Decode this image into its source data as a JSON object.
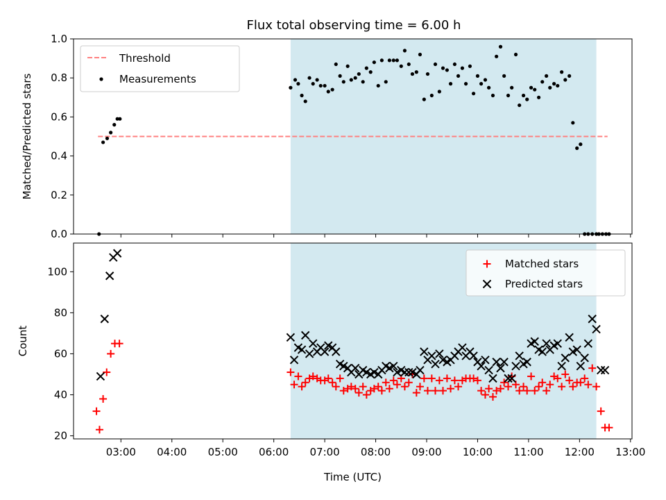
{
  "chart_data": {
    "title": "Flux total observing time = 6.00 h",
    "xlabel": "Time (UTC)",
    "x_tick_labels": [
      "03:00",
      "04:00",
      "05:00",
      "06:00",
      "07:00",
      "08:00",
      "09:00",
      "10:00",
      "11:00",
      "12:00",
      "13:00"
    ],
    "x_tick_hours": [
      3,
      4,
      5,
      6,
      7,
      8,
      9,
      10,
      11,
      12,
      13
    ],
    "xlim_hours": [
      2.07,
      13.03
    ],
    "shaded_region_hours": [
      6.33,
      12.33
    ],
    "colors": {
      "shade": "#d3e9f0",
      "threshold": "#ff7f7f",
      "matched": "#ff0000",
      "predicted": "#000000",
      "measurement": "#000000"
    },
    "panels": [
      {
        "type": "scatter",
        "ylabel": "Matched/Predicted stars",
        "ylim": [
          0,
          1.0
        ],
        "y_ticks": [
          0.0,
          0.2,
          0.4,
          0.6,
          0.8,
          1.0
        ],
        "y_tick_labels": [
          "0.0",
          "0.2",
          "0.4",
          "0.6",
          "0.8",
          "1.0"
        ],
        "legend": {
          "position": "upper-left",
          "threshold_label": "Threshold",
          "measurements_label": "Measurements"
        },
        "threshold": {
          "y": 0.5,
          "x_start": 2.55,
          "x_end": 12.55
        },
        "measurements": {
          "x": [
            2.57,
            2.65,
            2.73,
            2.8,
            2.87,
            2.93,
            2.98,
            6.33,
            6.42,
            6.48,
            6.55,
            6.62,
            6.7,
            6.77,
            6.85,
            6.92,
            7.0,
            7.07,
            7.15,
            7.22,
            7.3,
            7.37,
            7.45,
            7.52,
            7.6,
            7.67,
            7.75,
            7.82,
            7.9,
            7.97,
            8.05,
            8.12,
            8.2,
            8.27,
            8.35,
            8.42,
            8.5,
            8.57,
            8.65,
            8.72,
            8.8,
            8.87,
            8.95,
            9.02,
            9.1,
            9.17,
            9.25,
            9.32,
            9.4,
            9.47,
            9.55,
            9.62,
            9.7,
            9.77,
            9.85,
            9.92,
            10.0,
            10.07,
            10.15,
            10.22,
            10.3,
            10.37,
            10.45,
            10.52,
            10.6,
            10.67,
            10.75,
            10.82,
            10.9,
            10.97,
            11.05,
            11.12,
            11.2,
            11.27,
            11.35,
            11.42,
            11.5,
            11.57,
            11.65,
            11.72,
            11.8,
            11.87,
            11.95,
            12.02,
            12.1,
            12.17,
            12.25,
            12.33,
            12.38,
            12.45,
            12.52,
            12.58
          ],
          "y": [
            0.0,
            0.47,
            0.49,
            0.52,
            0.56,
            0.59,
            0.59,
            0.75,
            0.79,
            0.77,
            0.71,
            0.68,
            0.8,
            0.77,
            0.79,
            0.76,
            0.76,
            0.73,
            0.74,
            0.87,
            0.81,
            0.78,
            0.86,
            0.79,
            0.8,
            0.82,
            0.78,
            0.85,
            0.83,
            0.88,
            0.76,
            0.89,
            0.78,
            0.89,
            0.89,
            0.89,
            0.86,
            0.94,
            0.87,
            0.82,
            0.83,
            0.92,
            0.69,
            0.82,
            0.71,
            0.87,
            0.73,
            0.85,
            0.84,
            0.77,
            0.87,
            0.81,
            0.85,
            0.77,
            0.86,
            0.72,
            0.81,
            0.77,
            0.79,
            0.75,
            0.71,
            0.91,
            0.96,
            0.81,
            0.71,
            0.75,
            0.92,
            0.66,
            0.71,
            0.69,
            0.75,
            0.74,
            0.7,
            0.78,
            0.81,
            0.75,
            0.77,
            0.76,
            0.83,
            0.79,
            0.81,
            0.57,
            0.44,
            0.46,
            0.0,
            0.0,
            0.0,
            0.0,
            0.0,
            0.0,
            0.0,
            0.0
          ]
        }
      },
      {
        "type": "scatter",
        "ylabel": "Count",
        "ylim": [
          18.5,
          114
        ],
        "y_ticks": [
          20,
          40,
          60,
          80,
          100
        ],
        "y_tick_labels": [
          "20",
          "40",
          "60",
          "80",
          "100"
        ],
        "legend": {
          "position": "upper-right",
          "matched_label": "Matched stars",
          "predicted_label": "Predicted stars"
        },
        "matched": {
          "x": [
            2.52,
            2.58,
            2.65,
            2.72,
            2.8,
            2.88,
            2.97,
            6.33,
            6.4,
            6.48,
            6.55,
            6.62,
            6.7,
            6.77,
            6.85,
            6.92,
            7.0,
            7.07,
            7.15,
            7.22,
            7.3,
            7.37,
            7.45,
            7.52,
            7.6,
            7.67,
            7.75,
            7.82,
            7.9,
            7.97,
            8.05,
            8.12,
            8.2,
            8.27,
            8.35,
            8.42,
            8.5,
            8.57,
            8.65,
            8.72,
            8.8,
            8.87,
            8.95,
            9.02,
            9.1,
            9.17,
            9.25,
            9.32,
            9.4,
            9.47,
            9.55,
            9.62,
            9.7,
            9.77,
            9.85,
            9.92,
            10.0,
            10.07,
            10.15,
            10.22,
            10.3,
            10.37,
            10.45,
            10.52,
            10.6,
            10.67,
            10.75,
            10.82,
            10.9,
            10.97,
            11.05,
            11.12,
            11.2,
            11.27,
            11.35,
            11.42,
            11.5,
            11.57,
            11.65,
            11.72,
            11.8,
            11.87,
            11.95,
            12.02,
            12.1,
            12.17,
            12.25,
            12.33,
            12.42,
            12.5,
            12.58
          ],
          "y": [
            32,
            23,
            38,
            51,
            60,
            65,
            65,
            51,
            45,
            49,
            44,
            46,
            48,
            49,
            48,
            47,
            47,
            48,
            46,
            44,
            48,
            42,
            43,
            44,
            43,
            41,
            44,
            40,
            42,
            43,
            44,
            42,
            46,
            43,
            47,
            45,
            48,
            44,
            46,
            50,
            41,
            44,
            48,
            42,
            48,
            42,
            47,
            42,
            48,
            43,
            47,
            44,
            47,
            48,
            48,
            48,
            47,
            42,
            40,
            43,
            39,
            42,
            43,
            46,
            44,
            49,
            45,
            42,
            44,
            42,
            49,
            42,
            44,
            46,
            42,
            45,
            49,
            48,
            44,
            50,
            47,
            44,
            46,
            46,
            48,
            45,
            53,
            44,
            32,
            24,
            24
          ]
        },
        "predicted": {
          "x": [
            2.6,
            2.68,
            2.78,
            2.85,
            2.93,
            6.33,
            6.4,
            6.48,
            6.55,
            6.62,
            6.7,
            6.77,
            6.85,
            6.92,
            7.0,
            7.07,
            7.15,
            7.22,
            7.3,
            7.37,
            7.45,
            7.52,
            7.6,
            7.67,
            7.75,
            7.82,
            7.9,
            7.97,
            8.05,
            8.12,
            8.2,
            8.27,
            8.35,
            8.42,
            8.5,
            8.57,
            8.65,
            8.72,
            8.8,
            8.87,
            8.95,
            9.02,
            9.1,
            9.17,
            9.25,
            9.32,
            9.4,
            9.47,
            9.55,
            9.62,
            9.7,
            9.77,
            9.85,
            9.92,
            10.0,
            10.07,
            10.15,
            10.22,
            10.3,
            10.37,
            10.45,
            10.52,
            10.6,
            10.67,
            10.75,
            10.82,
            10.9,
            10.97,
            11.05,
            11.12,
            11.2,
            11.27,
            11.35,
            11.42,
            11.5,
            11.57,
            11.65,
            11.72,
            11.8,
            11.87,
            11.95,
            12.02,
            12.1,
            12.17,
            12.25,
            12.33,
            12.42,
            12.5
          ],
          "y": [
            49,
            77,
            98,
            107,
            109,
            68,
            57,
            63,
            62,
            69,
            60,
            65,
            61,
            63,
            61,
            64,
            63,
            61,
            55,
            54,
            53,
            51,
            53,
            50,
            52,
            51,
            50,
            51,
            50,
            52,
            54,
            53,
            54,
            51,
            52,
            51,
            51,
            51,
            50,
            52,
            61,
            57,
            59,
            55,
            60,
            57,
            56,
            57,
            59,
            61,
            63,
            59,
            61,
            59,
            56,
            54,
            57,
            52,
            48,
            56,
            53,
            56,
            48,
            48,
            54,
            59,
            55,
            56,
            65,
            66,
            62,
            61,
            65,
            62,
            64,
            65,
            54,
            58,
            68,
            61,
            62,
            54,
            58,
            65,
            77,
            72,
            52,
            52
          ]
        }
      }
    ]
  }
}
